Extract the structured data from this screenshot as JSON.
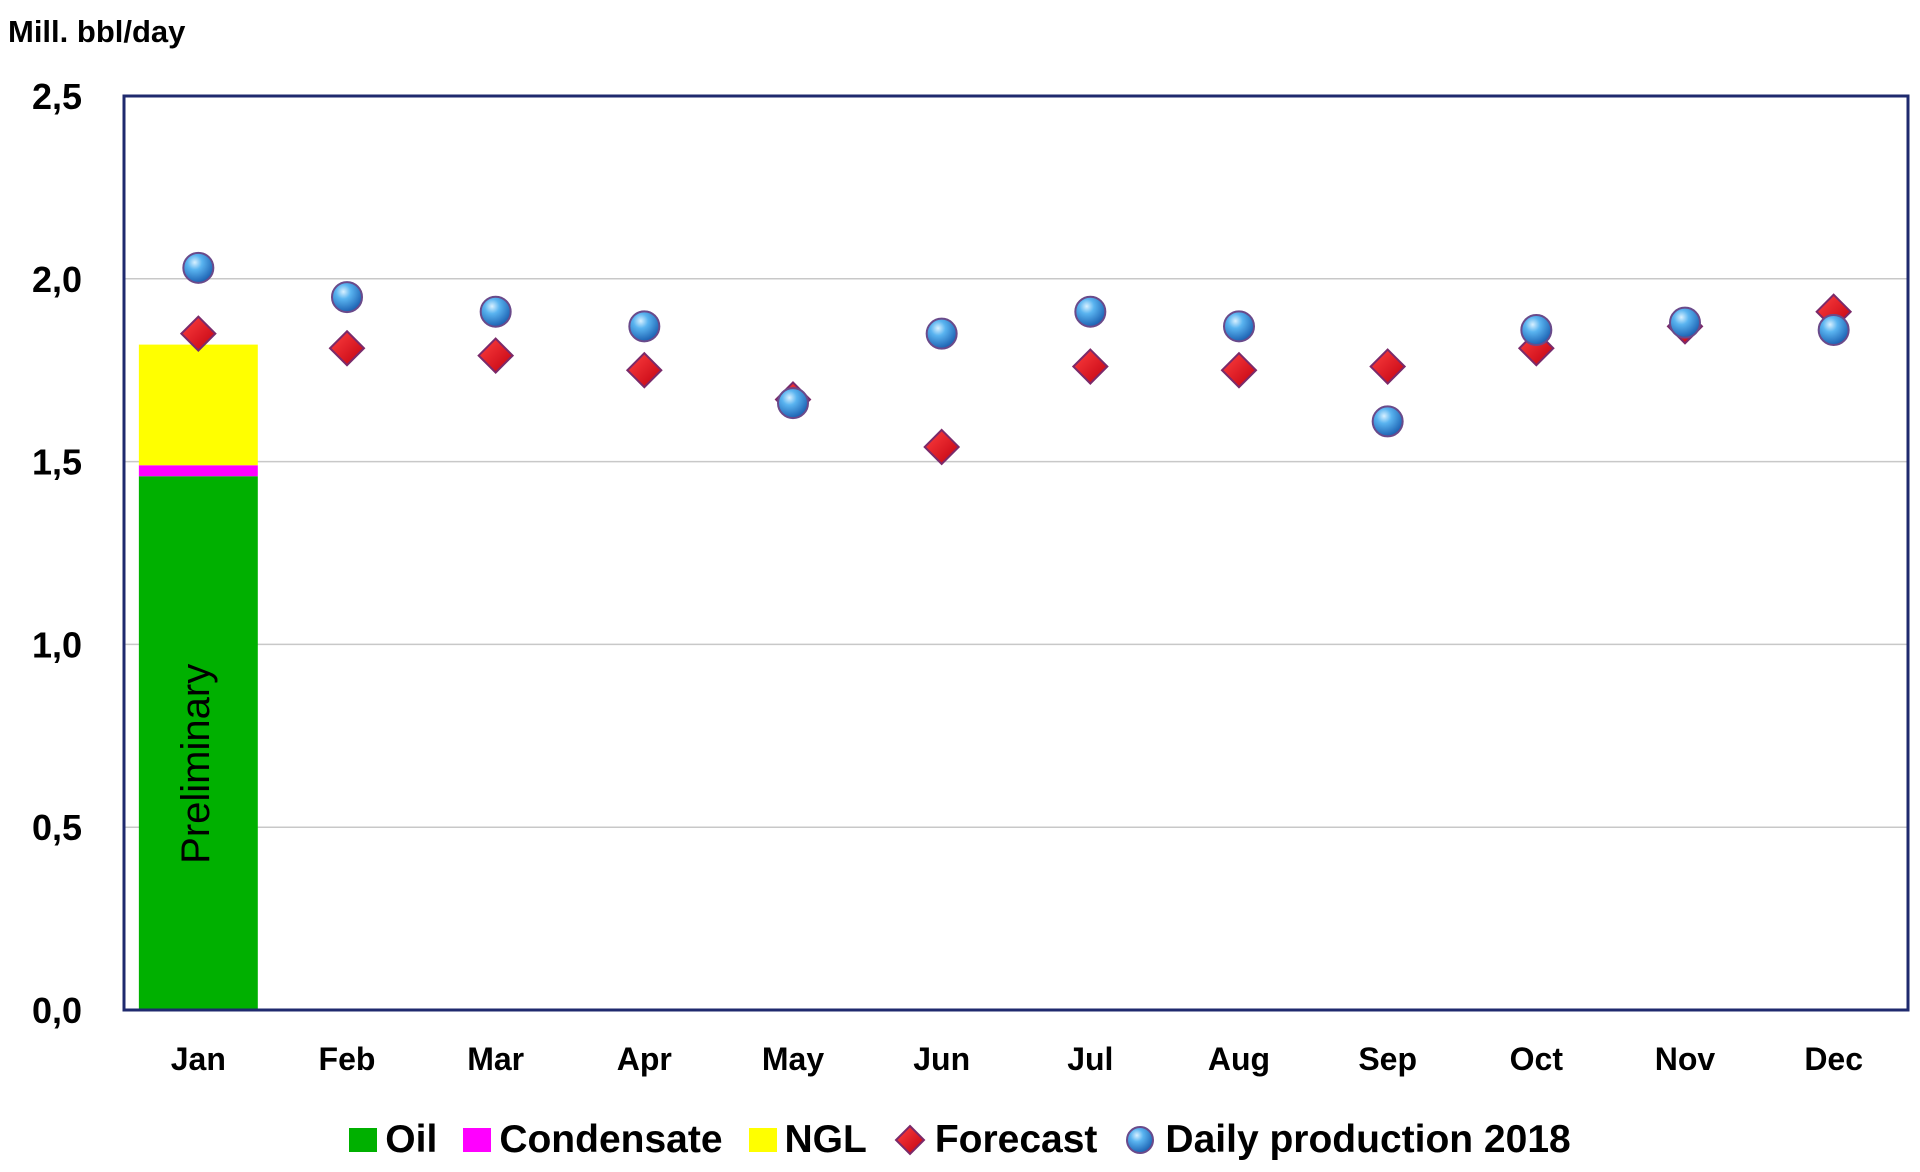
{
  "chart_data": {
    "type": "bar",
    "ylabel": "Mill. bbl/day",
    "ylim": [
      0,
      2.5
    ],
    "yticks": [
      "0,0",
      "0,5",
      "1,0",
      "1,5",
      "2,0",
      "2,5"
    ],
    "categories": [
      "Jan",
      "Feb",
      "Mar",
      "Apr",
      "May",
      "Jun",
      "Jul",
      "Aug",
      "Sep",
      "Oct",
      "Nov",
      "Dec"
    ],
    "grid": true,
    "legend_position": "bottom",
    "bar_annotation": "Preliminary",
    "stacked_bars": [
      {
        "name": "Oil",
        "color": "#00b000",
        "values": [
          1.46,
          null,
          null,
          null,
          null,
          null,
          null,
          null,
          null,
          null,
          null,
          null
        ]
      },
      {
        "name": "Condensate",
        "color": "#ff00ff",
        "values": [
          0.03,
          null,
          null,
          null,
          null,
          null,
          null,
          null,
          null,
          null,
          null,
          null
        ]
      },
      {
        "name": "NGL",
        "color": "#ffff00",
        "values": [
          0.33,
          null,
          null,
          null,
          null,
          null,
          null,
          null,
          null,
          null,
          null,
          null
        ]
      }
    ],
    "series": [
      {
        "name": "Forecast",
        "marker": "diamond",
        "color": "#e8141e",
        "values": [
          1.85,
          1.81,
          1.79,
          1.75,
          1.67,
          1.54,
          1.76,
          1.75,
          1.76,
          1.81,
          1.87,
          1.91
        ]
      },
      {
        "name": "Daily production 2018",
        "marker": "circle",
        "color": "#3a9be8",
        "values": [
          2.03,
          1.95,
          1.91,
          1.87,
          1.66,
          1.85,
          1.91,
          1.87,
          1.61,
          1.86,
          1.88,
          1.86
        ]
      }
    ]
  }
}
